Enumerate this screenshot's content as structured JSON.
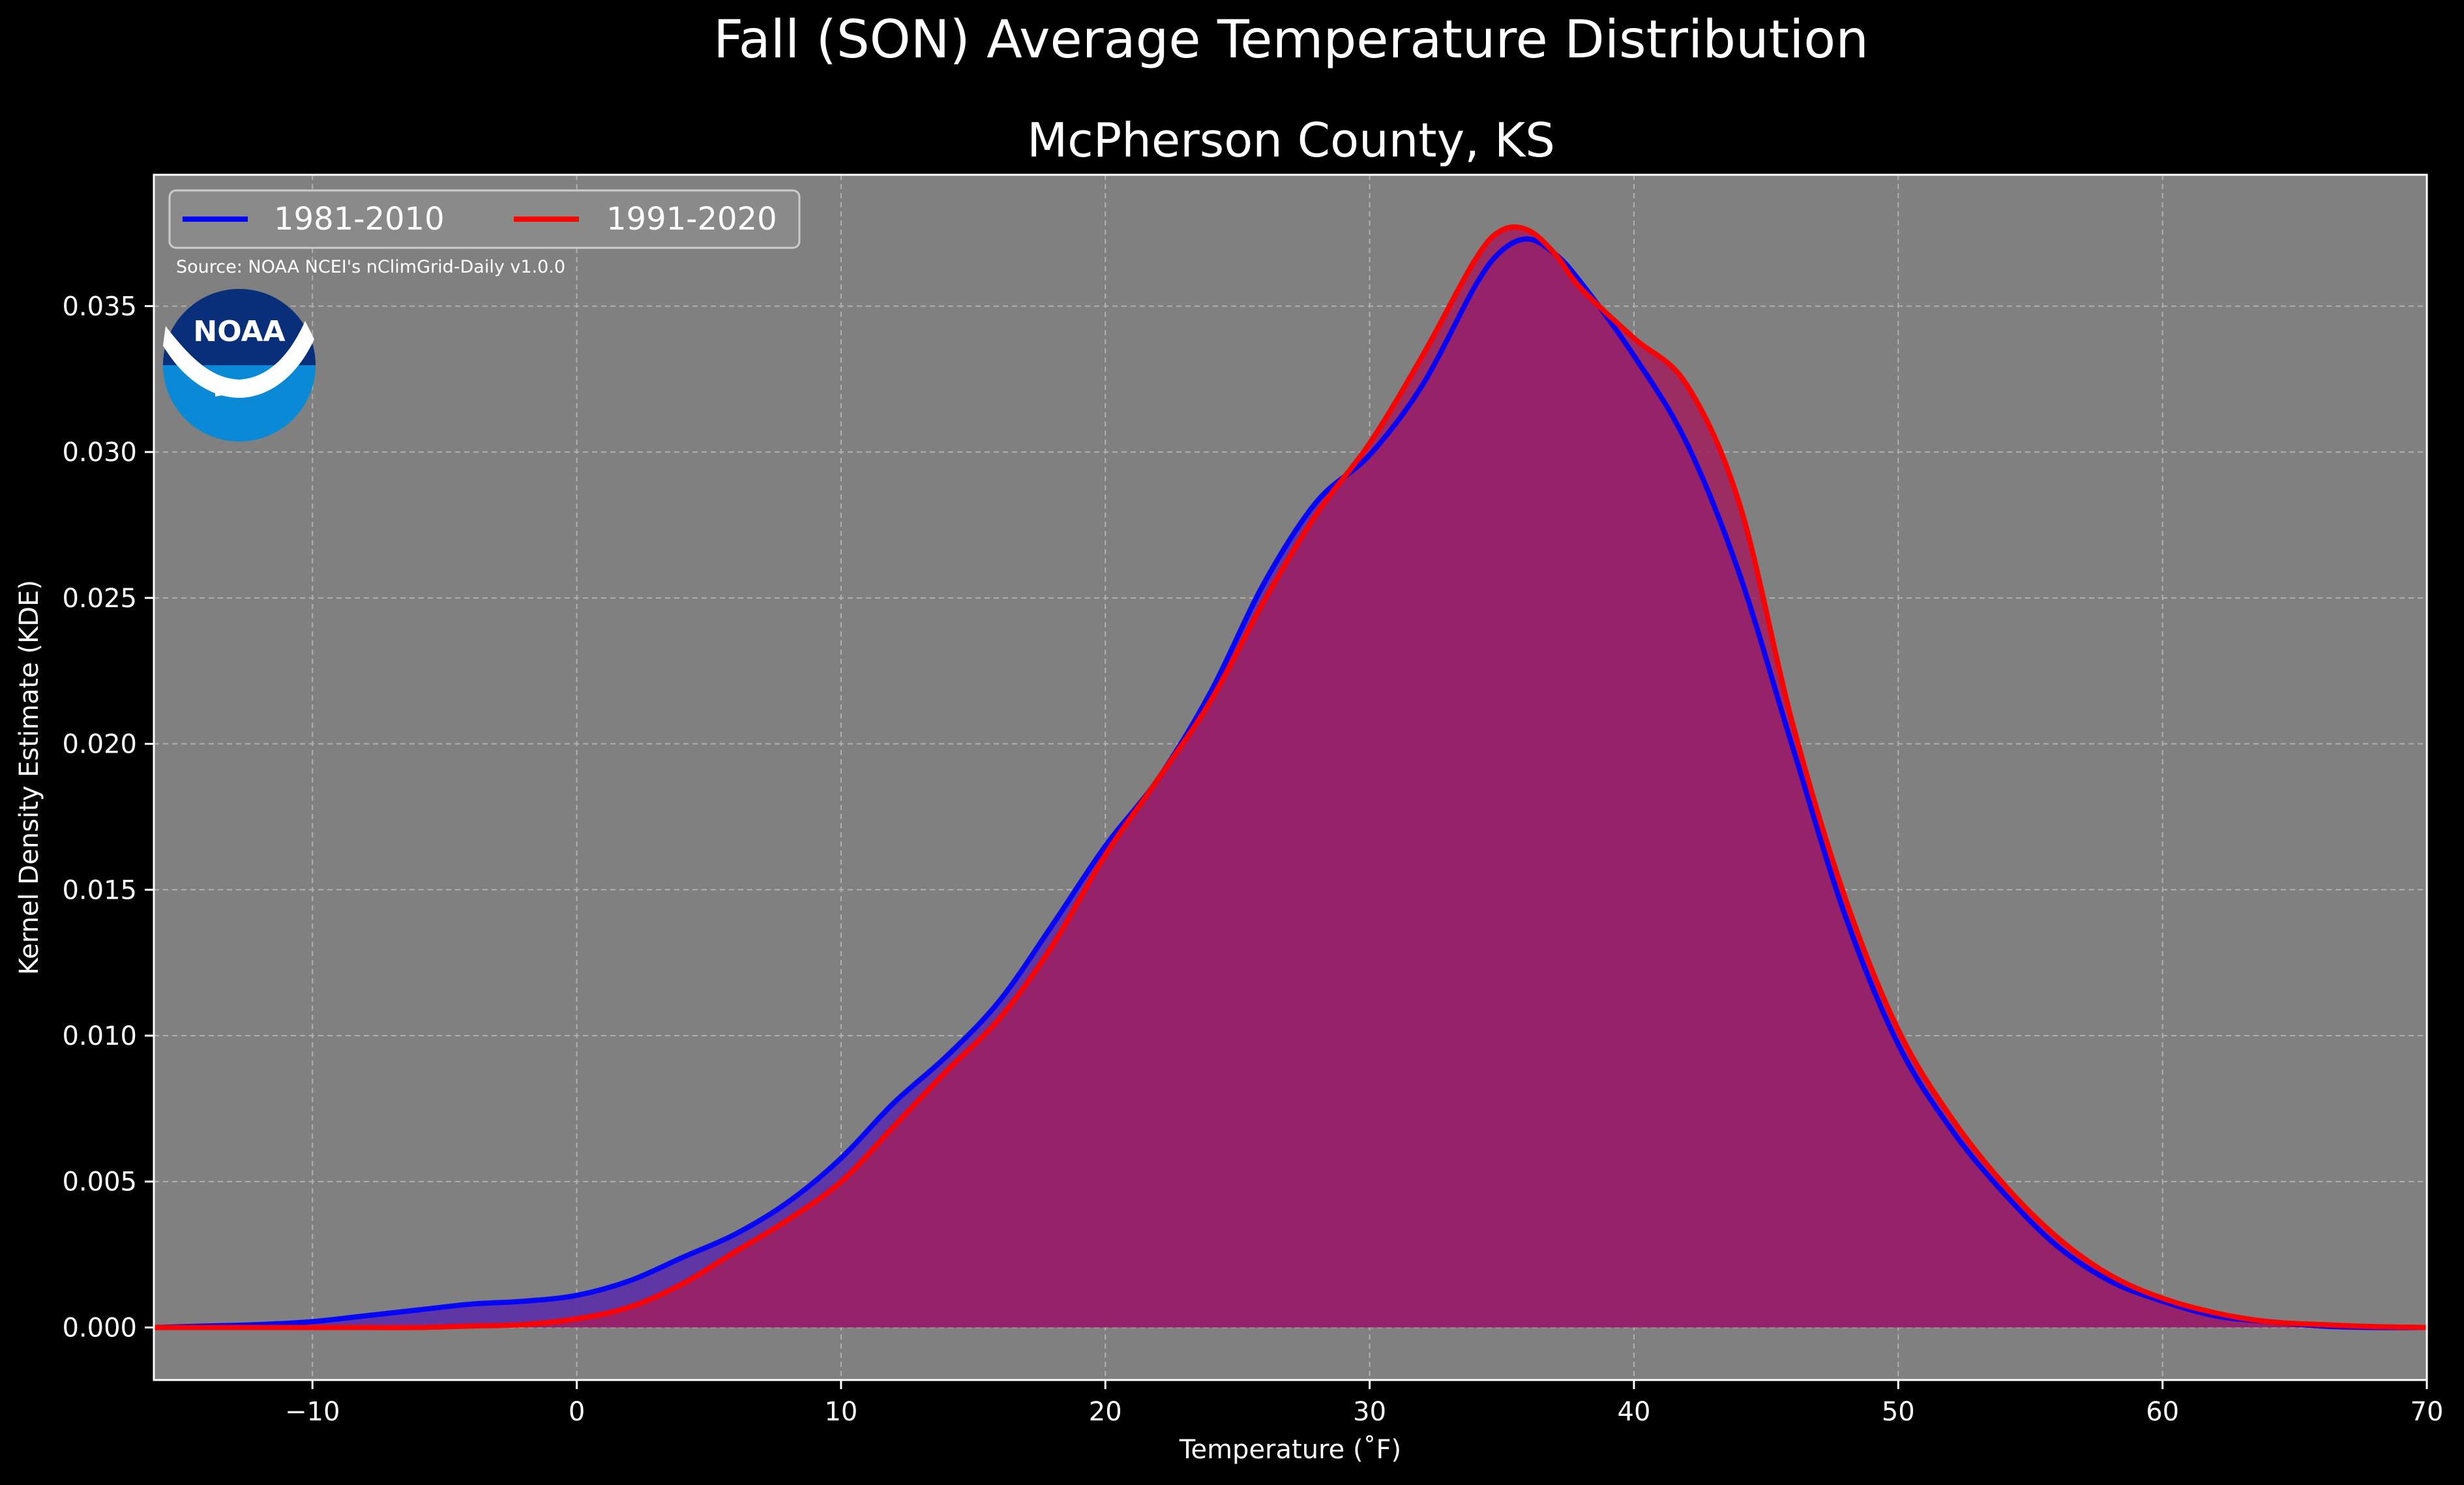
{
  "chart_data": {
    "type": "area",
    "suptitle": "Fall (SON) Average Temperature Distribution",
    "title": "McPherson County, KS",
    "xlabel": "Temperature (˚F)",
    "ylabel": "Kernel Density Estimate (KDE)",
    "xlim": [
      -16,
      70
    ],
    "ylim": [
      -0.0018,
      0.0395
    ],
    "xticks": [
      -10,
      0,
      10,
      20,
      30,
      40,
      50,
      60,
      70
    ],
    "xtick_labels": [
      "−10",
      "0",
      "10",
      "20",
      "30",
      "40",
      "50",
      "60",
      "70"
    ],
    "yticks": [
      0.0,
      0.005,
      0.01,
      0.015,
      0.02,
      0.025,
      0.03,
      0.035
    ],
    "ytick_labels": [
      "0.000",
      "0.005",
      "0.010",
      "0.015",
      "0.020",
      "0.025",
      "0.030",
      "0.035"
    ],
    "grid": true,
    "legend_position": "top-left",
    "source_note": "Source: NOAA NCEI's nClimGrid-Daily v1.0.0",
    "logo_text": "NOAA",
    "colors": {
      "figure_background": "#000000",
      "plot_background": "#808080",
      "fill_1981_2010": "#5a2fa8",
      "fill_1991_2020": "#a01e5e"
    },
    "series": [
      {
        "name": "1981-2010",
        "color": "#0000ff",
        "x": [
          -16,
          -14,
          -12,
          -10,
          -8,
          -6,
          -4,
          -2,
          0,
          2,
          4,
          6,
          8,
          10,
          12,
          14,
          16,
          18,
          20,
          22,
          24,
          26,
          28,
          30,
          32,
          34,
          35,
          36,
          37,
          38,
          40,
          42,
          44,
          46,
          48,
          50,
          52,
          54,
          56,
          58,
          60,
          62,
          64,
          66,
          68,
          70
        ],
        "y": [
          0.0,
          5e-05,
          0.0001,
          0.0002,
          0.0004,
          0.0006,
          0.0008,
          0.0009,
          0.0011,
          0.0016,
          0.0024,
          0.0032,
          0.0043,
          0.0058,
          0.0077,
          0.0093,
          0.0112,
          0.0138,
          0.0165,
          0.0188,
          0.0218,
          0.0255,
          0.0283,
          0.0299,
          0.0323,
          0.0357,
          0.0369,
          0.0373,
          0.0368,
          0.0358,
          0.0333,
          0.0303,
          0.0258,
          0.0199,
          0.0141,
          0.0097,
          0.0068,
          0.0046,
          0.0028,
          0.0016,
          0.0009,
          0.0004,
          0.0002,
          5e-05,
          0.0,
          0.0
        ]
      },
      {
        "name": "1991-2020",
        "color": "#ff0000",
        "x": [
          -16,
          -14,
          -12,
          -10,
          -8,
          -6,
          -4,
          -2,
          0,
          2,
          4,
          6,
          8,
          10,
          12,
          14,
          16,
          18,
          20,
          22,
          24,
          26,
          28,
          30,
          32,
          34,
          35,
          36,
          37,
          38,
          40,
          42,
          44,
          46,
          48,
          50,
          52,
          54,
          56,
          58,
          60,
          62,
          64,
          66,
          68,
          70
        ],
        "y": [
          0.0,
          0.0,
          0.0,
          0.0,
          0.0,
          0.0,
          5e-05,
          0.0001,
          0.0003,
          0.0007,
          0.0015,
          0.0026,
          0.0037,
          0.005,
          0.0069,
          0.0088,
          0.0106,
          0.0131,
          0.0162,
          0.0188,
          0.0215,
          0.0249,
          0.0279,
          0.0303,
          0.0333,
          0.0366,
          0.0376,
          0.0376,
          0.0368,
          0.0356,
          0.0339,
          0.0323,
          0.0282,
          0.0207,
          0.0147,
          0.0102,
          0.0072,
          0.0049,
          0.0031,
          0.0018,
          0.001,
          0.0005,
          0.0002,
          0.0001,
          3e-05,
          0.0
        ]
      }
    ]
  }
}
